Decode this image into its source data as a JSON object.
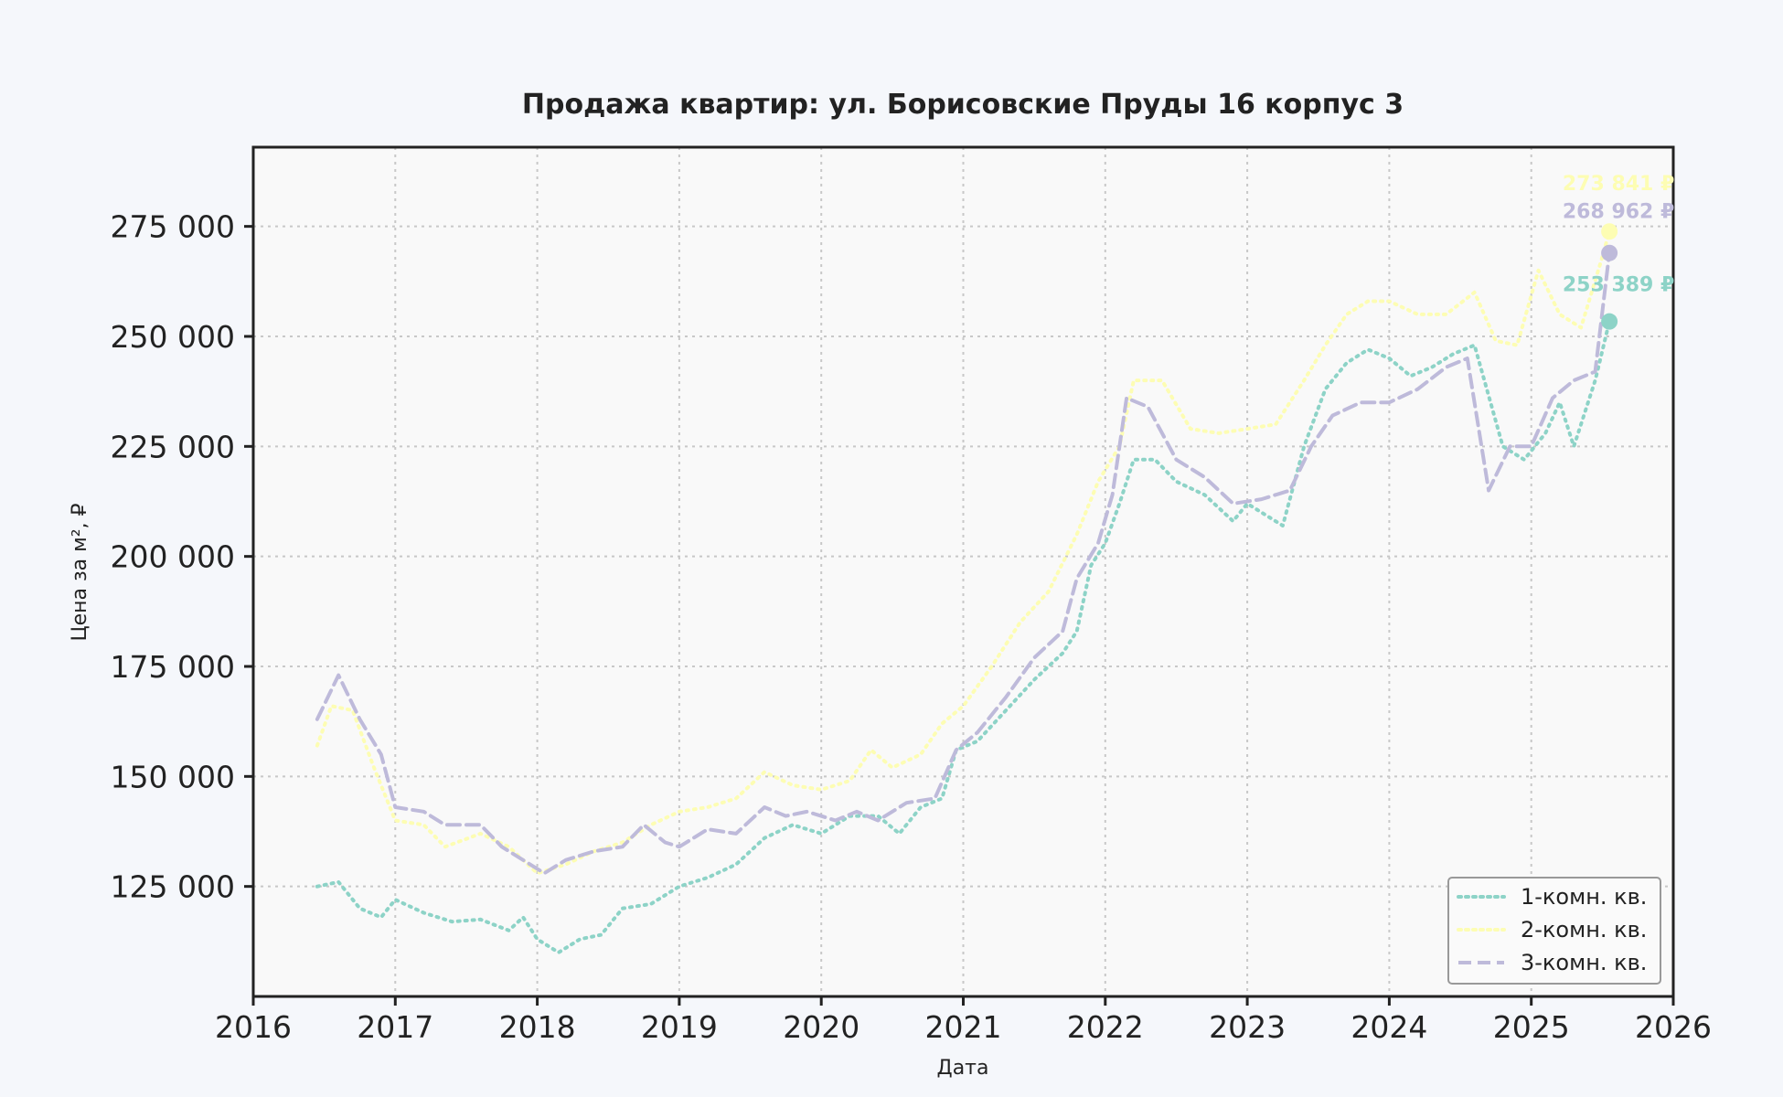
{
  "chart_data": {
    "type": "line",
    "title": "Продажа квартир: ул. Борисовские Пруды 16 корпус 3",
    "xlabel": "Дата",
    "ylabel": "Цена за м², ₽",
    "xlim": [
      2016,
      2026
    ],
    "ylim": [
      100000,
      293000
    ],
    "x_ticks": [
      "2016",
      "2017",
      "2018",
      "2019",
      "2020",
      "2021",
      "2022",
      "2023",
      "2024",
      "2025",
      "2026"
    ],
    "y_ticks": [
      125000,
      150000,
      175000,
      200000,
      225000,
      250000,
      275000
    ],
    "y_tick_labels": [
      "125 000",
      "150 000",
      "175 000",
      "200 000",
      "225 000",
      "250 000",
      "275 000"
    ],
    "grid": true,
    "legend_position": "lower-right",
    "series": [
      {
        "name": "1-комн. кв.",
        "color": "#8dd3c7",
        "dash": "dotted",
        "end_label": "253 389 ₽",
        "points": [
          [
            2016.45,
            125000
          ],
          [
            2016.6,
            126000
          ],
          [
            2016.75,
            120000
          ],
          [
            2016.9,
            118000
          ],
          [
            2017.0,
            122000
          ],
          [
            2017.2,
            119000
          ],
          [
            2017.4,
            117000
          ],
          [
            2017.6,
            117500
          ],
          [
            2017.8,
            115000
          ],
          [
            2017.9,
            118000
          ],
          [
            2018.0,
            113000
          ],
          [
            2018.15,
            110000
          ],
          [
            2018.3,
            113000
          ],
          [
            2018.45,
            114000
          ],
          [
            2018.6,
            120000
          ],
          [
            2018.8,
            121000
          ],
          [
            2019.0,
            125000
          ],
          [
            2019.2,
            127000
          ],
          [
            2019.4,
            130000
          ],
          [
            2019.6,
            136000
          ],
          [
            2019.8,
            139000
          ],
          [
            2020.0,
            137000
          ],
          [
            2020.2,
            141000
          ],
          [
            2020.4,
            141000
          ],
          [
            2020.55,
            137000
          ],
          [
            2020.7,
            143000
          ],
          [
            2020.85,
            145000
          ],
          [
            2020.95,
            156000
          ],
          [
            2021.1,
            158000
          ],
          [
            2021.3,
            165000
          ],
          [
            2021.5,
            172000
          ],
          [
            2021.7,
            178000
          ],
          [
            2021.8,
            183000
          ],
          [
            2021.9,
            198000
          ],
          [
            2022.0,
            203000
          ],
          [
            2022.1,
            212000
          ],
          [
            2022.2,
            222000
          ],
          [
            2022.35,
            222000
          ],
          [
            2022.5,
            217000
          ],
          [
            2022.7,
            214000
          ],
          [
            2022.9,
            208000
          ],
          [
            2023.0,
            212000
          ],
          [
            2023.1,
            210000
          ],
          [
            2023.25,
            207000
          ],
          [
            2023.4,
            225000
          ],
          [
            2023.55,
            238000
          ],
          [
            2023.7,
            244000
          ],
          [
            2023.85,
            247000
          ],
          [
            2024.0,
            245000
          ],
          [
            2024.15,
            241000
          ],
          [
            2024.3,
            243000
          ],
          [
            2024.45,
            246000
          ],
          [
            2024.6,
            248000
          ],
          [
            2024.8,
            225000
          ],
          [
            2024.95,
            222000
          ],
          [
            2025.1,
            228000
          ],
          [
            2025.2,
            235000
          ],
          [
            2025.3,
            225000
          ],
          [
            2025.45,
            240000
          ],
          [
            2025.55,
            253389
          ]
        ]
      },
      {
        "name": "2-комн. кв.",
        "color": "#fdfdb3",
        "dash": "dotted",
        "end_label": "273 841 ₽",
        "points": [
          [
            2016.45,
            157000
          ],
          [
            2016.55,
            166000
          ],
          [
            2016.7,
            165000
          ],
          [
            2016.85,
            152000
          ],
          [
            2017.0,
            140000
          ],
          [
            2017.2,
            139000
          ],
          [
            2017.35,
            134000
          ],
          [
            2017.6,
            137000
          ],
          [
            2017.8,
            134000
          ],
          [
            2018.0,
            128000
          ],
          [
            2018.2,
            130000
          ],
          [
            2018.4,
            133000
          ],
          [
            2018.6,
            135000
          ],
          [
            2018.8,
            139000
          ],
          [
            2019.0,
            142000
          ],
          [
            2019.2,
            143000
          ],
          [
            2019.4,
            145000
          ],
          [
            2019.6,
            151000
          ],
          [
            2019.8,
            148000
          ],
          [
            2020.0,
            147000
          ],
          [
            2020.2,
            149000
          ],
          [
            2020.35,
            156000
          ],
          [
            2020.5,
            152000
          ],
          [
            2020.7,
            155000
          ],
          [
            2020.85,
            162000
          ],
          [
            2021.0,
            166000
          ],
          [
            2021.2,
            175000
          ],
          [
            2021.4,
            185000
          ],
          [
            2021.6,
            192000
          ],
          [
            2021.8,
            205000
          ],
          [
            2021.95,
            217000
          ],
          [
            2022.1,
            225000
          ],
          [
            2022.2,
            240000
          ],
          [
            2022.4,
            240000
          ],
          [
            2022.6,
            229000
          ],
          [
            2022.8,
            228000
          ],
          [
            2023.0,
            229000
          ],
          [
            2023.2,
            230000
          ],
          [
            2023.4,
            240000
          ],
          [
            2023.55,
            248000
          ],
          [
            2023.7,
            255000
          ],
          [
            2023.85,
            258000
          ],
          [
            2024.0,
            258000
          ],
          [
            2024.2,
            255000
          ],
          [
            2024.4,
            255000
          ],
          [
            2024.6,
            260000
          ],
          [
            2024.75,
            249000
          ],
          [
            2024.9,
            248000
          ],
          [
            2025.05,
            265000
          ],
          [
            2025.2,
            255000
          ],
          [
            2025.35,
            252000
          ],
          [
            2025.5,
            268000
          ],
          [
            2025.55,
            273841
          ]
        ]
      },
      {
        "name": "3-комн. кв.",
        "color": "#bebada",
        "dash": "dashed",
        "end_label": "268 962 ₽",
        "points": [
          [
            2016.45,
            163000
          ],
          [
            2016.6,
            173000
          ],
          [
            2016.75,
            163000
          ],
          [
            2016.9,
            155000
          ],
          [
            2017.0,
            143000
          ],
          [
            2017.2,
            142000
          ],
          [
            2017.35,
            139000
          ],
          [
            2017.6,
            139000
          ],
          [
            2017.75,
            134000
          ],
          [
            2017.9,
            131000
          ],
          [
            2018.05,
            128000
          ],
          [
            2018.2,
            131000
          ],
          [
            2018.4,
            133000
          ],
          [
            2018.6,
            134000
          ],
          [
            2018.75,
            139000
          ],
          [
            2018.9,
            135000
          ],
          [
            2019.0,
            134000
          ],
          [
            2019.2,
            138000
          ],
          [
            2019.4,
            137000
          ],
          [
            2019.6,
            143000
          ],
          [
            2019.75,
            141000
          ],
          [
            2019.9,
            142000
          ],
          [
            2020.1,
            140000
          ],
          [
            2020.25,
            142000
          ],
          [
            2020.4,
            140000
          ],
          [
            2020.6,
            144000
          ],
          [
            2020.8,
            145000
          ],
          [
            2020.95,
            156000
          ],
          [
            2021.1,
            160000
          ],
          [
            2021.3,
            168000
          ],
          [
            2021.5,
            177000
          ],
          [
            2021.7,
            183000
          ],
          [
            2021.8,
            195000
          ],
          [
            2021.95,
            203000
          ],
          [
            2022.05,
            214000
          ],
          [
            2022.15,
            236000
          ],
          [
            2022.3,
            234000
          ],
          [
            2022.5,
            222000
          ],
          [
            2022.7,
            218000
          ],
          [
            2022.9,
            212000
          ],
          [
            2023.1,
            213000
          ],
          [
            2023.3,
            215000
          ],
          [
            2023.45,
            225000
          ],
          [
            2023.6,
            232000
          ],
          [
            2023.8,
            235000
          ],
          [
            2024.0,
            235000
          ],
          [
            2024.2,
            238000
          ],
          [
            2024.4,
            243000
          ],
          [
            2024.55,
            245000
          ],
          [
            2024.7,
            215000
          ],
          [
            2024.85,
            225000
          ],
          [
            2025.0,
            225000
          ],
          [
            2025.15,
            236000
          ],
          [
            2025.3,
            240000
          ],
          [
            2025.45,
            242000
          ],
          [
            2025.55,
            268962
          ]
        ]
      }
    ]
  }
}
